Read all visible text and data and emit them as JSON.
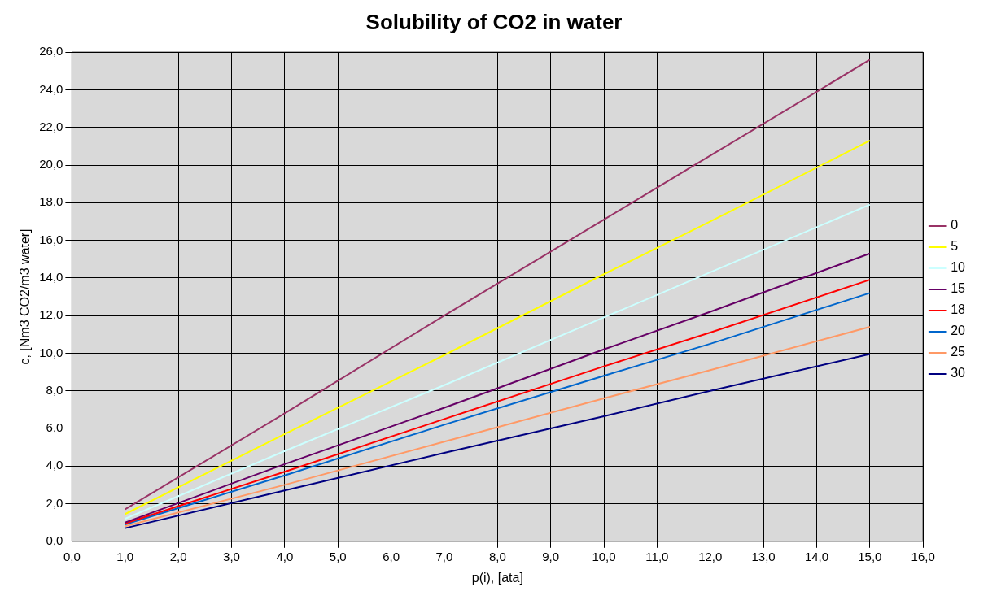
{
  "chart_data": {
    "type": "line",
    "title": "Solubility of CO2 in water",
    "xlabel": "p(i), [ata]",
    "ylabel": "c, [Nm3 CO2/m3 water]",
    "x": [
      1,
      4,
      7,
      10,
      12,
      15
    ],
    "series": [
      {
        "name": "0",
        "color": "#993366",
        "values": [
          1.7,
          6.8,
          12.0,
          17.1,
          20.5,
          25.6
        ]
      },
      {
        "name": "5",
        "color": "#ffff00",
        "values": [
          1.45,
          5.7,
          9.9,
          14.2,
          17.0,
          21.3
        ]
      },
      {
        "name": "10",
        "color": "#ccffff",
        "values": [
          1.2,
          4.8,
          8.3,
          11.9,
          14.3,
          17.9
        ]
      },
      {
        "name": "15",
        "color": "#660066",
        "values": [
          1.0,
          4.1,
          7.1,
          10.2,
          12.2,
          15.3
        ]
      },
      {
        "name": "18",
        "color": "#ff0000",
        "values": [
          0.95,
          3.7,
          6.5,
          9.3,
          11.1,
          13.9
        ]
      },
      {
        "name": "20",
        "color": "#0066cc",
        "values": [
          0.9,
          3.5,
          6.2,
          8.8,
          10.5,
          13.2
        ]
      },
      {
        "name": "25",
        "color": "#ff9966",
        "values": [
          0.8,
          3.0,
          5.3,
          7.6,
          9.1,
          11.4
        ]
      },
      {
        "name": "30",
        "color": "#000080",
        "values": [
          0.7,
          2.7,
          4.7,
          6.65,
          8.0,
          9.95
        ]
      }
    ],
    "xlim": [
      0,
      16
    ],
    "xticks": [
      {
        "value": 0,
        "label": "0,0"
      },
      {
        "value": 1,
        "label": "1,0"
      },
      {
        "value": 2,
        "label": "2,0"
      },
      {
        "value": 3,
        "label": "3,0"
      },
      {
        "value": 4,
        "label": "4,0"
      },
      {
        "value": 5,
        "label": "5,0"
      },
      {
        "value": 6,
        "label": "6,0"
      },
      {
        "value": 7,
        "label": "7,0"
      },
      {
        "value": 8,
        "label": "8,0"
      },
      {
        "value": 9,
        "label": "9,0"
      },
      {
        "value": 10,
        "label": "10,0"
      },
      {
        "value": 11,
        "label": "11,0"
      },
      {
        "value": 12,
        "label": "12,0"
      },
      {
        "value": 13,
        "label": "13,0"
      },
      {
        "value": 14,
        "label": "14,0"
      },
      {
        "value": 15,
        "label": "15,0"
      },
      {
        "value": 16,
        "label": "16,0"
      }
    ],
    "ylim": [
      0,
      26
    ],
    "yticks": [
      {
        "value": 0,
        "label": "0,0"
      },
      {
        "value": 2,
        "label": "2,0"
      },
      {
        "value": 4,
        "label": "4,0"
      },
      {
        "value": 6,
        "label": "6,0"
      },
      {
        "value": 8,
        "label": "8,0"
      },
      {
        "value": 10,
        "label": "10,0"
      },
      {
        "value": 12,
        "label": "12,0"
      },
      {
        "value": 14,
        "label": "14,0"
      },
      {
        "value": 16,
        "label": "16,0"
      },
      {
        "value": 18,
        "label": "18,0"
      },
      {
        "value": 20,
        "label": "20,0"
      },
      {
        "value": 22,
        "label": "22,0"
      },
      {
        "value": 24,
        "label": "24,0"
      },
      {
        "value": 26,
        "label": "26,0"
      }
    ],
    "grid": true,
    "legend": "right",
    "marker": "none",
    "line_style": "solid"
  }
}
